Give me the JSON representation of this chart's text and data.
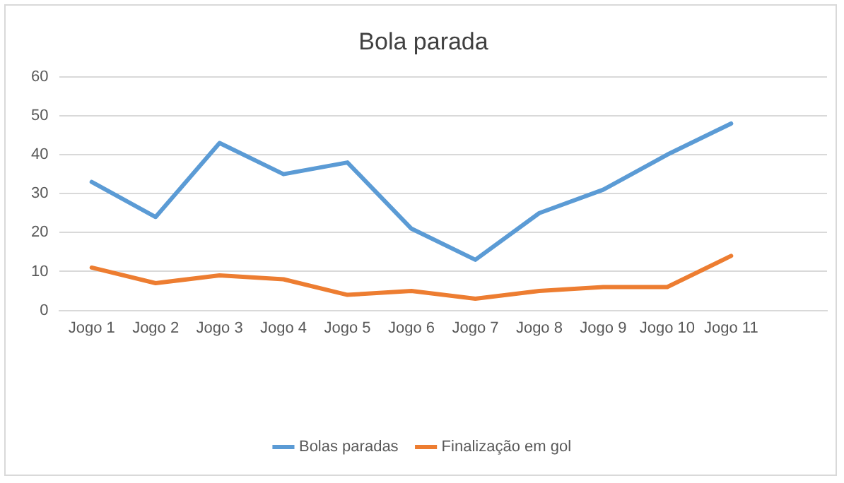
{
  "chart_data": {
    "type": "line",
    "title": "Bola parada",
    "categories": [
      "Jogo 1",
      "Jogo 2",
      "Jogo 3",
      "Jogo 4",
      "Jogo 5",
      "Jogo 6",
      "Jogo 7",
      "Jogo 8",
      "Jogo 9",
      "Jogo 10",
      "Jogo 11",
      null
    ],
    "series": [
      {
        "name": "Bolas paradas",
        "color": "#5b9bd5",
        "values": [
          33,
          24,
          43,
          35,
          38,
          21,
          13,
          25,
          31,
          40,
          48,
          null
        ]
      },
      {
        "name": "Finalização em gol",
        "color": "#ed7d31",
        "values": [
          11,
          7,
          9,
          8,
          4,
          5,
          3,
          5,
          6,
          6,
          14,
          null
        ]
      }
    ],
    "ylim": [
      0,
      60
    ],
    "yticks": [
      0,
      10,
      20,
      30,
      40,
      50,
      60
    ],
    "grid": "y",
    "legend": "bottom"
  }
}
